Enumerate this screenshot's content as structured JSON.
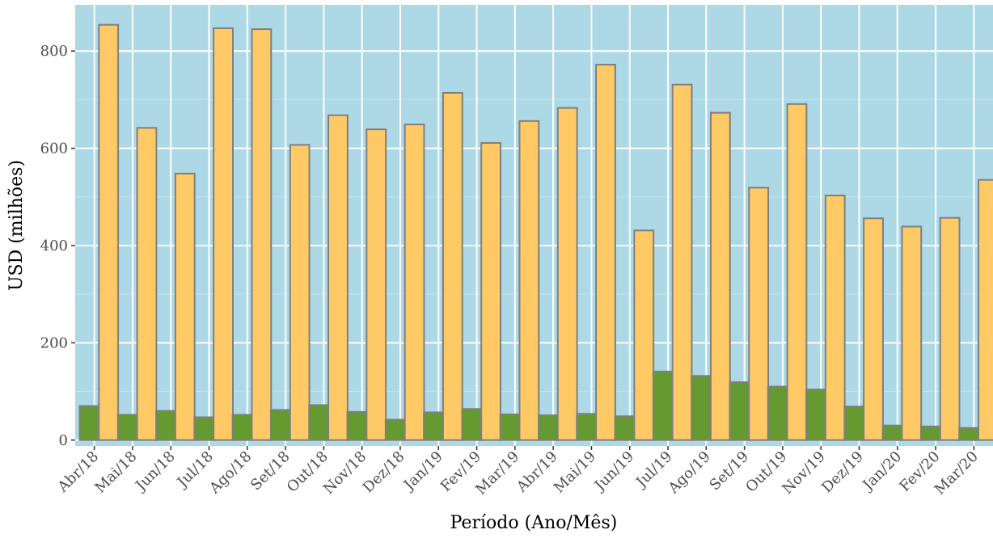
{
  "chart_data": {
    "type": "bar",
    "title": "",
    "xlabel": "Período (Ano/Mês)",
    "ylabel": "USD (milhões)",
    "ylim": [
      -12,
      895
    ],
    "yticks": [
      0,
      200,
      400,
      600,
      800
    ],
    "grid": true,
    "legend": "none",
    "colors": {
      "panel": "#add8e6",
      "grid_major": "#ffffff",
      "grid_minor": "#c8e6ef",
      "bar_outline": "#7f7f7f",
      "tick": "#333333"
    },
    "categories": [
      "Abr/18",
      "Mai/18",
      "Jun/18",
      "Jul/18",
      "Ago/18",
      "Set/18",
      "Out/18",
      "Nov/18",
      "Dez/18",
      "Jan/19",
      "Fev/19",
      "Mar/19",
      "Abr/19",
      "Mai/19",
      "Jun/19",
      "Jul/19",
      "Ago/19",
      "Set/19",
      "Out/19",
      "Nov/19",
      "Dez/19",
      "Jan/20",
      "Fev/20",
      "Mar/20"
    ],
    "series": [
      {
        "color": "#649a30",
        "values": [
          70,
          52,
          60,
          47,
          52,
          62,
          72,
          58,
          42,
          57,
          64,
          53,
          51,
          54,
          49,
          141,
          132,
          119,
          110,
          104,
          69,
          30,
          28,
          25
        ]
      },
      {
        "color": "#ffca66",
        "values": [
          854,
          642,
          548,
          847,
          845,
          607,
          668,
          639,
          649,
          714,
          611,
          656,
          683,
          772,
          431,
          731,
          673,
          519,
          691,
          503,
          456,
          439,
          457,
          535
        ]
      }
    ]
  }
}
